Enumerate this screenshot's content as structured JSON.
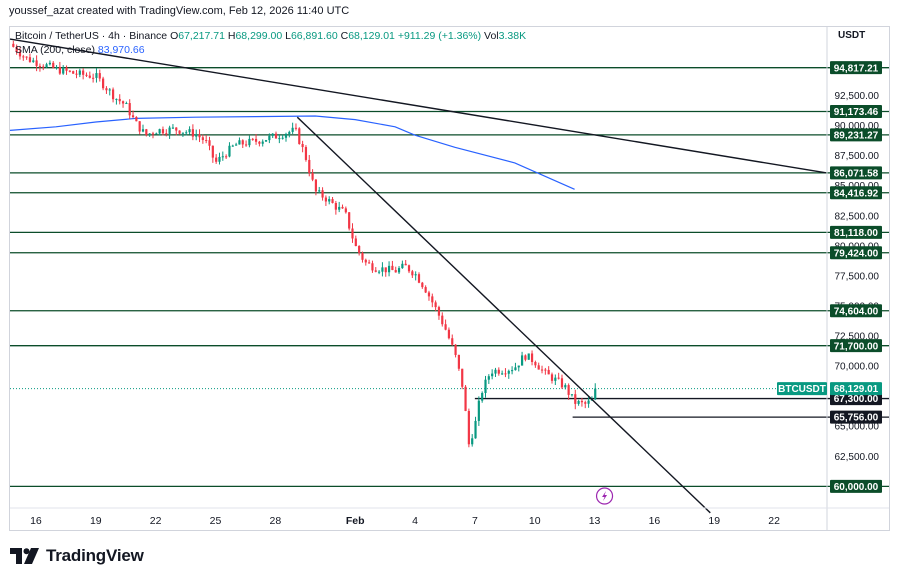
{
  "credit": "youssef_azat created with TradingView.com, Feb 12, 2026 11:40 UTC",
  "legend": {
    "symbol": "Bitcoin / TetherUS · 4h · Binance",
    "open_label": "O",
    "open": "67,217.71",
    "high_label": "H",
    "high": "68,299.00",
    "low_label": "L",
    "low": "66,891.60",
    "close_label": "C",
    "close": "68,129.01",
    "change": "+911.29 (+1.36%)",
    "vol_label": "Vol",
    "vol": "3.38K",
    "sma_label": "SMA (200, close)",
    "sma_value": "83,970.66"
  },
  "currency": "USDT",
  "footer": {
    "brand": "TradingView",
    "logo_icon": "tradingview-logo-icon"
  },
  "colors": {
    "up": "#089981",
    "down": "#f23645",
    "sma": "#2962ff",
    "level_line": "#0b4d2a",
    "level_label_bg": "#0b4d2a",
    "trendline": "#131722",
    "price_label_bg": "#089981"
  },
  "chart_data": {
    "type": "candlestick",
    "title": "",
    "symbol_label": "BTCUSDT",
    "current_price": 68129.01,
    "y_range": [
      58200,
      98200
    ],
    "y_ticks": [
      "92,500.00",
      "90,000.00",
      "87,500.00",
      "85,000.00",
      "82,500.00",
      "80,000.00",
      "77,500.00",
      "75,000.00",
      "72,500.00",
      "70,000.00",
      "65,000.00",
      "62,500.00"
    ],
    "y_tick_values": [
      92500,
      90000,
      87500,
      85000,
      82500,
      80000,
      77500,
      75000,
      72500,
      70000,
      65000,
      62500
    ],
    "x_ticks": [
      "16",
      "19",
      "22",
      "25",
      "28",
      "Feb",
      "4",
      "7",
      "10",
      "13",
      "16",
      "19",
      "22"
    ],
    "x_tick_days": [
      -16,
      -13,
      -10,
      -7,
      -4,
      0,
      3,
      6,
      9,
      12,
      15,
      18,
      21
    ],
    "x_range_days": [
      -17.3,
      23.6
    ],
    "horizontal_levels": [
      "94,817.21",
      "91,173.46",
      "89,231.27",
      "86,071.58",
      "84,416.92",
      "81,118.00",
      "79,424.00",
      "74,604.00",
      "71,700.00",
      "60,000.00"
    ],
    "horizontal_level_values": [
      94817.21,
      91173.46,
      89231.27,
      86071.58,
      84416.92,
      81118.0,
      79424.0,
      74604.0,
      71700.0,
      60000.0
    ],
    "range_levels": [
      {
        "label": "67,300.00",
        "value": 67300,
        "x_start_day": 6.0
      },
      {
        "label": "65,756.00",
        "value": 65756,
        "x_start_day": 10.9
      }
    ],
    "trendlines": [
      {
        "from": [
          -17.3,
          97200
        ],
        "to": [
          23.6,
          86071.58
        ]
      },
      {
        "from": [
          -2.9,
          90700
        ],
        "to": [
          17.8,
          57800
        ]
      }
    ],
    "sma_points": [
      [
        -17.3,
        89600
      ],
      [
        -15,
        89900
      ],
      [
        -13,
        90300
      ],
      [
        -11,
        90600
      ],
      [
        -8,
        90700
      ],
      [
        -5,
        90750
      ],
      [
        -2,
        90800
      ],
      [
        0,
        90500
      ],
      [
        2,
        89900
      ],
      [
        3,
        89200
      ],
      [
        5,
        88200
      ],
      [
        8,
        86900
      ],
      [
        11,
        84700
      ]
    ],
    "close_path": [
      [
        -17.3,
        96800
      ],
      [
        -16.5,
        95600
      ],
      [
        -16,
        95300
      ],
      [
        -15,
        94700
      ],
      [
        -14,
        94300
      ],
      [
        -13,
        94100
      ],
      [
        -12.5,
        93200
      ],
      [
        -12,
        92300
      ],
      [
        -11.5,
        91700
      ],
      [
        -11,
        90200
      ],
      [
        -10.5,
        89200
      ],
      [
        -10,
        89600
      ],
      [
        -9,
        89700
      ],
      [
        -8,
        89300
      ],
      [
        -7.5,
        88700
      ],
      [
        -7,
        86900
      ],
      [
        -6.5,
        87700
      ],
      [
        -6,
        88400
      ],
      [
        -5,
        88700
      ],
      [
        -4,
        89100
      ],
      [
        -3.5,
        89400
      ],
      [
        -3,
        89600
      ],
      [
        -2.5,
        87500
      ],
      [
        -2,
        84500
      ],
      [
        -1.5,
        84000
      ],
      [
        -1,
        83300
      ],
      [
        -0.5,
        82700
      ],
      [
        0,
        80000
      ],
      [
        0.5,
        78600
      ],
      [
        1,
        78200
      ],
      [
        2,
        77900
      ],
      [
        2.5,
        78300
      ],
      [
        3,
        77700
      ],
      [
        3.5,
        76500
      ],
      [
        4,
        74900
      ],
      [
        4.5,
        73200
      ],
      [
        5,
        71000
      ],
      [
        5.4,
        68200
      ],
      [
        5.7,
        63500
      ],
      [
        6.0,
        65000
      ],
      [
        6.3,
        67700
      ],
      [
        6.8,
        69600
      ],
      [
        7.5,
        69700
      ],
      [
        8,
        69900
      ],
      [
        8.5,
        70900
      ],
      [
        9,
        70400
      ],
      [
        9.5,
        69400
      ],
      [
        10,
        68900
      ],
      [
        10.5,
        68300
      ],
      [
        11,
        67000
      ],
      [
        11.5,
        66800
      ],
      [
        12,
        67200
      ],
      [
        12.1,
        68129
      ]
    ]
  }
}
